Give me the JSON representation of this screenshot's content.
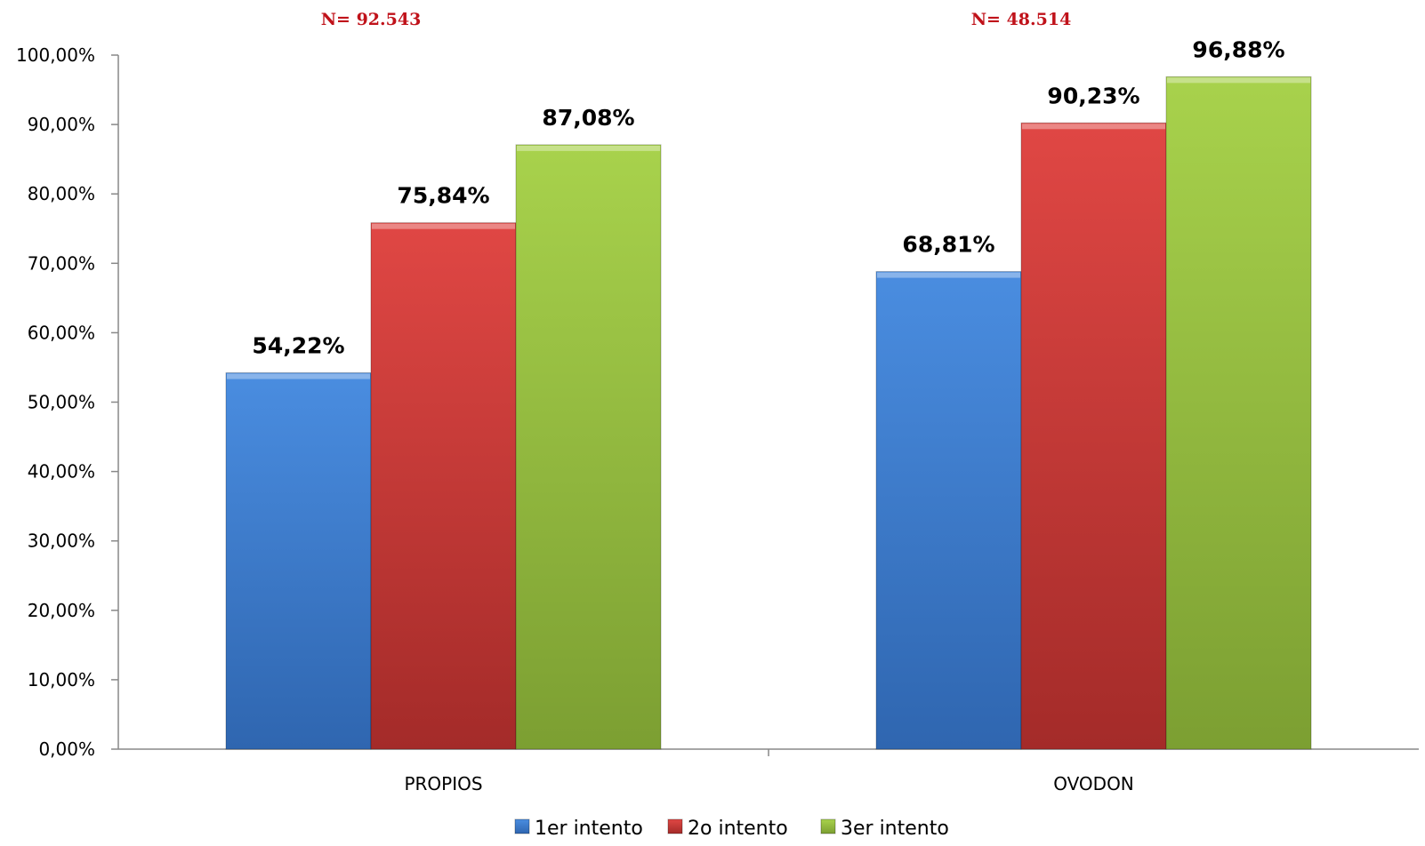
{
  "chart_data": {
    "type": "bar",
    "categories": [
      "PROPIOS",
      "OVODON"
    ],
    "category_annotations": [
      "N= 92.543",
      "N= 48.514"
    ],
    "series": [
      {
        "name": "1er intento",
        "values": [
          54.22,
          68.81
        ],
        "labels": [
          "54,22%",
          "68,81%"
        ],
        "color": "#3d7fd3"
      },
      {
        "name": "2o intento",
        "values": [
          75.84,
          90.23
        ],
        "labels": [
          "75,84%",
          "90,23%"
        ],
        "color": "#d13d3a"
      },
      {
        "name": "3er intento",
        "values": [
          87.08,
          96.88
        ],
        "labels": [
          "87,08%",
          "96,88%"
        ],
        "color": "#98c23e"
      }
    ],
    "ylim": [
      0,
      100
    ],
    "yticks": [
      0,
      10,
      20,
      30,
      40,
      50,
      60,
      70,
      80,
      90,
      100
    ],
    "ytick_labels": [
      "0,00%",
      "10,00%",
      "20,00%",
      "30,00%",
      "40,00%",
      "50,00%",
      "60,00%",
      "70,00%",
      "80,00%",
      "90,00%",
      "100,00%"
    ],
    "grid": false,
    "legend_position": "bottom",
    "annotation_color": "#c0121a"
  }
}
